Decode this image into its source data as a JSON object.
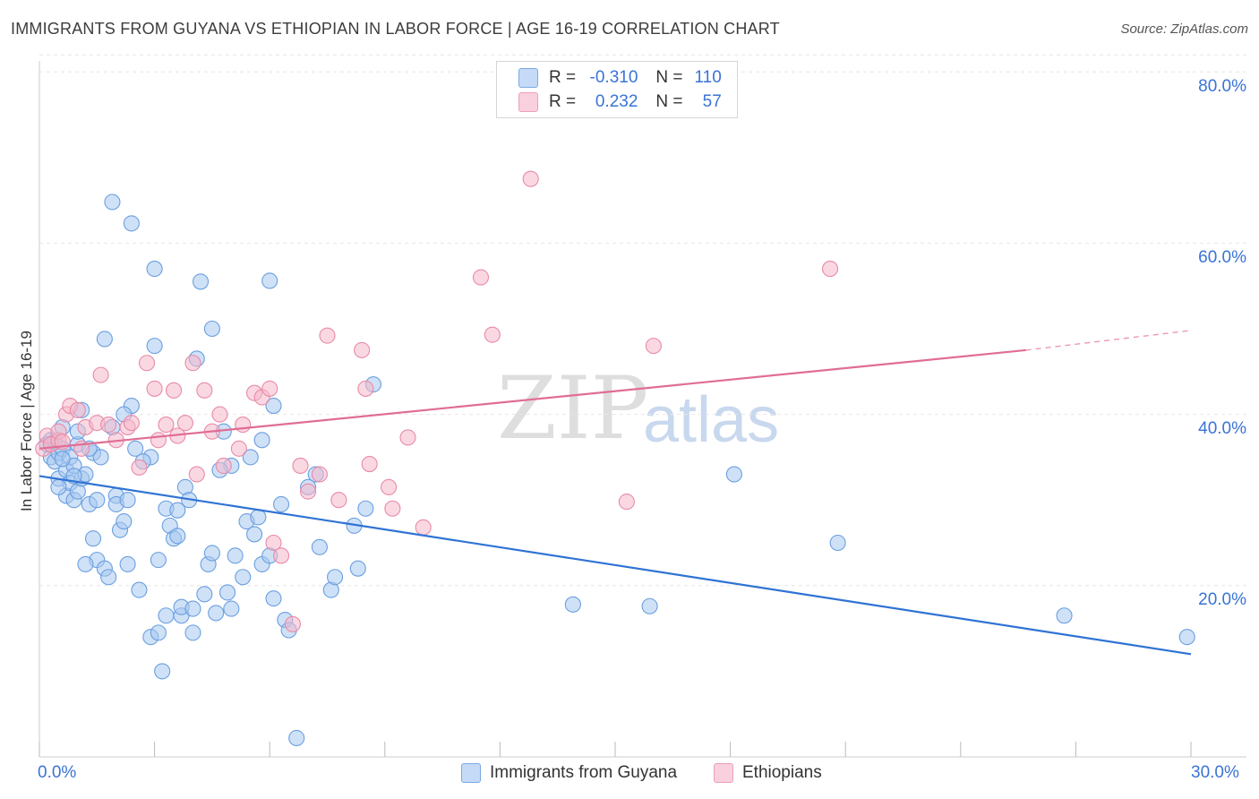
{
  "title": "IMMIGRANTS FROM GUYANA VS ETHIOPIAN IN LABOR FORCE | AGE 16-19 CORRELATION CHART",
  "source": "Source: ZipAtlas.com",
  "watermark": {
    "zip": "ZIP",
    "atlas": "atlas"
  },
  "legend": {
    "rows": [
      {
        "r_label": "R =",
        "r_value": "-0.310",
        "n_label": "N =",
        "n_value": "110",
        "color": "#a8c8f0"
      },
      {
        "r_label": "R =",
        "r_value": "0.232",
        "n_label": "N =",
        "n_value": "57",
        "color": "#f5b8cb"
      }
    ]
  },
  "bottom_legend": {
    "series1": "Immigrants from Guyana",
    "series2": "Ethiopians"
  },
  "chart_data": {
    "type": "scatter",
    "title": "IMMIGRANTS FROM GUYANA VS ETHIOPIAN IN LABOR FORCE | AGE 16-19 CORRELATION CHART",
    "xlabel": "",
    "ylabel": "In Labor Force | Age 16-19",
    "xlim": [
      0,
      30
    ],
    "ylim": [
      0,
      82
    ],
    "x_ticks": [
      "0.0%",
      "30.0%"
    ],
    "y_ticks": [
      {
        "value": 20,
        "label": "20.0%"
      },
      {
        "value": 40,
        "label": "40.0%"
      },
      {
        "value": 60,
        "label": "60.0%"
      },
      {
        "value": 80,
        "label": "80.0%"
      }
    ],
    "series": [
      {
        "name": "Immigrants from Guyana",
        "color": "#6a9fe0",
        "fill": "#a8c8f0",
        "trend": {
          "x": [
            0,
            30
          ],
          "y": [
            32.8,
            12.0
          ],
          "color": "#2f73d4",
          "dashed_from": null
        },
        "points": [
          [
            0.2,
            36.5
          ],
          [
            0.3,
            37.0
          ],
          [
            0.3,
            35.0
          ],
          [
            0.4,
            34.5
          ],
          [
            0.5,
            35.5
          ],
          [
            0.5,
            32.5
          ],
          [
            0.6,
            38.5
          ],
          [
            0.6,
            36.0
          ],
          [
            0.7,
            30.5
          ],
          [
            0.7,
            33.5
          ],
          [
            0.8,
            35.0
          ],
          [
            0.8,
            32.0
          ],
          [
            0.9,
            34.0
          ],
          [
            0.9,
            30.0
          ],
          [
            1.0,
            36.5
          ],
          [
            1.0,
            31.0
          ],
          [
            1.1,
            32.5
          ],
          [
            1.1,
            40.5
          ],
          [
            1.2,
            33.0
          ],
          [
            1.3,
            29.5
          ],
          [
            1.4,
            35.5
          ],
          [
            1.4,
            25.5
          ],
          [
            1.5,
            30.0
          ],
          [
            1.5,
            23.0
          ],
          [
            1.2,
            22.5
          ],
          [
            1.6,
            35.0
          ],
          [
            1.7,
            48.8
          ],
          [
            1.7,
            22.0
          ],
          [
            1.8,
            21.0
          ],
          [
            1.9,
            38.5
          ],
          [
            1.9,
            64.8
          ],
          [
            2.0,
            30.5
          ],
          [
            2.0,
            29.5
          ],
          [
            2.1,
            26.5
          ],
          [
            2.2,
            27.5
          ],
          [
            2.3,
            30.0
          ],
          [
            2.3,
            22.5
          ],
          [
            2.4,
            62.3
          ],
          [
            2.4,
            41.0
          ],
          [
            2.5,
            36.0
          ],
          [
            2.6,
            19.5
          ],
          [
            2.9,
            35.0
          ],
          [
            2.9,
            14.0
          ],
          [
            3.0,
            57.0
          ],
          [
            3.0,
            48.0
          ],
          [
            3.1,
            23.0
          ],
          [
            3.1,
            14.5
          ],
          [
            3.2,
            10.0
          ],
          [
            3.3,
            29.0
          ],
          [
            3.3,
            16.5
          ],
          [
            3.4,
            27.0
          ],
          [
            3.5,
            25.5
          ],
          [
            3.6,
            25.8
          ],
          [
            3.6,
            28.8
          ],
          [
            3.7,
            16.5
          ],
          [
            3.7,
            17.5
          ],
          [
            4.0,
            14.5
          ],
          [
            4.0,
            17.3
          ],
          [
            4.1,
            46.5
          ],
          [
            4.2,
            55.5
          ],
          [
            4.3,
            19.0
          ],
          [
            4.4,
            22.5
          ],
          [
            4.5,
            50.0
          ],
          [
            4.5,
            23.8
          ],
          [
            4.6,
            16.8
          ],
          [
            4.8,
            38.0
          ],
          [
            4.9,
            19.2
          ],
          [
            5.0,
            17.3
          ],
          [
            5.0,
            34.0
          ],
          [
            5.1,
            23.5
          ],
          [
            5.3,
            21.0
          ],
          [
            5.4,
            27.5
          ],
          [
            5.5,
            35.0
          ],
          [
            5.7,
            28.0
          ],
          [
            5.8,
            37.0
          ],
          [
            5.8,
            22.5
          ],
          [
            6.0,
            23.5
          ],
          [
            6.0,
            55.6
          ],
          [
            6.1,
            18.5
          ],
          [
            6.1,
            41.0
          ],
          [
            6.4,
            16.0
          ],
          [
            6.5,
            14.8
          ],
          [
            6.7,
            2.2
          ],
          [
            7.2,
            33.0
          ],
          [
            7.3,
            24.5
          ],
          [
            7.6,
            19.5
          ],
          [
            7.7,
            21.0
          ],
          [
            8.2,
            27.0
          ],
          [
            8.3,
            22.0
          ],
          [
            8.5,
            29.0
          ],
          [
            8.7,
            43.5
          ],
          [
            13.9,
            17.8
          ],
          [
            15.9,
            17.6
          ],
          [
            18.1,
            33.0
          ],
          [
            20.8,
            25.0
          ],
          [
            26.7,
            16.5
          ],
          [
            29.9,
            14.0
          ],
          [
            0.4,
            36.8
          ],
          [
            0.6,
            34.8
          ],
          [
            0.9,
            32.8
          ],
          [
            1.3,
            36.0
          ],
          [
            2.7,
            34.5
          ],
          [
            3.8,
            31.5
          ],
          [
            4.7,
            33.5
          ],
          [
            5.6,
            26.0
          ],
          [
            6.3,
            29.5
          ],
          [
            7.0,
            31.5
          ],
          [
            2.2,
            40.0
          ],
          [
            1.0,
            38.0
          ],
          [
            0.5,
            31.5
          ],
          [
            3.9,
            30.0
          ]
        ]
      },
      {
        "name": "Ethiopians",
        "color": "#e88aa8",
        "fill": "#f5b8cb",
        "trend": {
          "x": [
            0,
            25.7
          ],
          "y": [
            36.0,
            47.5
          ],
          "color": "#e06d94",
          "dashed_to": [
            30,
            49.8
          ]
        },
        "points": [
          [
            0.1,
            36.0
          ],
          [
            0.2,
            37.5
          ],
          [
            0.3,
            36.5
          ],
          [
            0.5,
            37.0
          ],
          [
            0.5,
            38.0
          ],
          [
            0.6,
            36.8
          ],
          [
            0.7,
            40.0
          ],
          [
            0.8,
            41.0
          ],
          [
            1.0,
            40.5
          ],
          [
            1.1,
            36.0
          ],
          [
            1.2,
            38.5
          ],
          [
            1.5,
            39.0
          ],
          [
            1.6,
            44.6
          ],
          [
            1.8,
            38.8
          ],
          [
            2.0,
            37.0
          ],
          [
            2.3,
            38.5
          ],
          [
            2.4,
            39.0
          ],
          [
            2.6,
            33.8
          ],
          [
            2.8,
            46.0
          ],
          [
            3.0,
            43.0
          ],
          [
            3.1,
            37.0
          ],
          [
            3.3,
            38.8
          ],
          [
            3.5,
            42.8
          ],
          [
            3.6,
            37.5
          ],
          [
            3.8,
            39.0
          ],
          [
            4.0,
            46.0
          ],
          [
            4.1,
            33.0
          ],
          [
            4.3,
            42.8
          ],
          [
            4.5,
            38.0
          ],
          [
            4.7,
            40.0
          ],
          [
            4.8,
            34.0
          ],
          [
            5.2,
            36.0
          ],
          [
            5.3,
            38.8
          ],
          [
            5.6,
            42.5
          ],
          [
            5.8,
            42.0
          ],
          [
            6.0,
            43.0
          ],
          [
            6.1,
            25.0
          ],
          [
            6.3,
            23.5
          ],
          [
            6.6,
            15.5
          ],
          [
            6.8,
            34.0
          ],
          [
            7.0,
            31.0
          ],
          [
            7.3,
            33.0
          ],
          [
            7.5,
            49.2
          ],
          [
            7.8,
            30.0
          ],
          [
            8.4,
            47.5
          ],
          [
            8.5,
            43.0
          ],
          [
            8.6,
            34.2
          ],
          [
            9.1,
            31.5
          ],
          [
            9.2,
            29.0
          ],
          [
            9.6,
            37.3
          ],
          [
            10.0,
            26.8
          ],
          [
            11.5,
            56.0
          ],
          [
            11.8,
            49.3
          ],
          [
            12.8,
            67.5
          ],
          [
            15.3,
            29.8
          ],
          [
            16.0,
            48.0
          ],
          [
            20.6,
            57.0
          ]
        ]
      }
    ]
  }
}
